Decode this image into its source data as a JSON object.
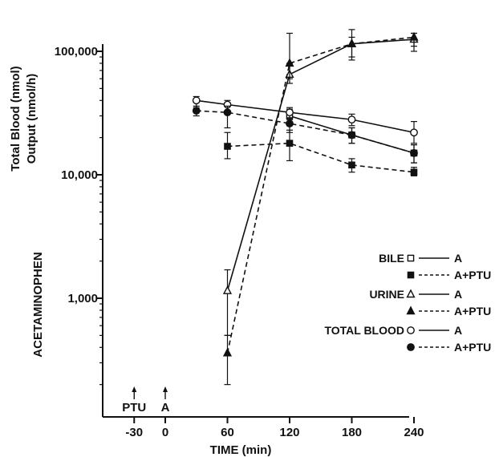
{
  "chart_data": {
    "type": "line",
    "yscale": "log",
    "ylim": [
      100,
      200000
    ],
    "xlim": [
      -65,
      255
    ],
    "x_ticks": [
      -30,
      0,
      60,
      120,
      180,
      240
    ],
    "y_ticks": [
      {
        "value": 1000,
        "label": "1,000"
      },
      {
        "value": 10000,
        "label": "10,000"
      },
      {
        "value": 100000,
        "label": "100,000"
      }
    ],
    "xlabel": "TIME (min)",
    "ylabel_main": "ACETAMINOPHEN",
    "ylabel_sub1": "Total Blood (nmol)",
    "ylabel_sub2": "Output (nmol/h)",
    "annotations": [
      {
        "x": -30,
        "label": "PTU"
      },
      {
        "x": 0,
        "label": "A"
      }
    ],
    "series": [
      {
        "group": "BILE",
        "name": "A",
        "marker": "square-open",
        "dash": "solid",
        "x": [
          120,
          180,
          240
        ],
        "y": [
          30000,
          21000,
          15000
        ],
        "err_low": [
          25000,
          18000,
          12500
        ],
        "err_high": [
          34000,
          24000,
          17500
        ]
      },
      {
        "group": "BILE",
        "name": "A+PTU",
        "marker": "square-filled",
        "dash": "dashed",
        "x": [
          60,
          120,
          180,
          240
        ],
        "y": [
          17000,
          18000,
          12000,
          10500
        ],
        "err_low": [
          13500,
          13000,
          10500,
          9800
        ],
        "err_high": [
          22000,
          23000,
          13500,
          11500
        ]
      },
      {
        "group": "URINE",
        "name": "A",
        "marker": "triangle-open",
        "dash": "solid",
        "x": [
          60,
          120,
          180,
          240
        ],
        "y": [
          1150,
          65000,
          115000,
          125000
        ],
        "err_low": [
          500,
          55000,
          90000,
          110000
        ],
        "err_high": [
          1700,
          80000,
          150000,
          140000
        ]
      },
      {
        "group": "URINE",
        "name": "A+PTU",
        "marker": "triangle-filled",
        "dash": "dashed",
        "x": [
          60,
          120,
          180,
          240
        ],
        "y": [
          360,
          80000,
          115000,
          130000
        ],
        "err_low": [
          200,
          60000,
          85000,
          100000
        ],
        "err_high": [
          500,
          140000,
          130000,
          140000
        ]
      },
      {
        "group": "TOTAL BLOOD",
        "name": "A",
        "marker": "circle-open",
        "dash": "solid",
        "x": [
          30,
          60,
          120,
          180,
          240
        ],
        "y": [
          40000,
          37000,
          32000,
          28000,
          22000
        ],
        "err_low": [
          35000,
          33000,
          28000,
          25000,
          18000
        ],
        "err_high": [
          43000,
          40000,
          35000,
          31000,
          27000
        ]
      },
      {
        "group": "TOTAL BLOOD",
        "name": "A+PTU",
        "marker": "circle-filled",
        "dash": "dashed",
        "x": [
          30,
          60,
          120,
          180,
          240
        ],
        "y": [
          33000,
          32000,
          26000,
          21000,
          15000
        ],
        "err_low": [
          30000,
          24000,
          22000,
          18000,
          12500
        ],
        "err_high": [
          36000,
          36000,
          29000,
          24000,
          17500
        ]
      }
    ],
    "legend": {
      "placement": "right",
      "groups": [
        {
          "label": "BILE",
          "entries": [
            "A",
            "A+PTU"
          ]
        },
        {
          "label": "URINE",
          "entries": [
            "A",
            "A+PTU"
          ]
        },
        {
          "label": "TOTAL BLOOD",
          "entries": [
            "A",
            "A+PTU"
          ]
        }
      ]
    }
  }
}
